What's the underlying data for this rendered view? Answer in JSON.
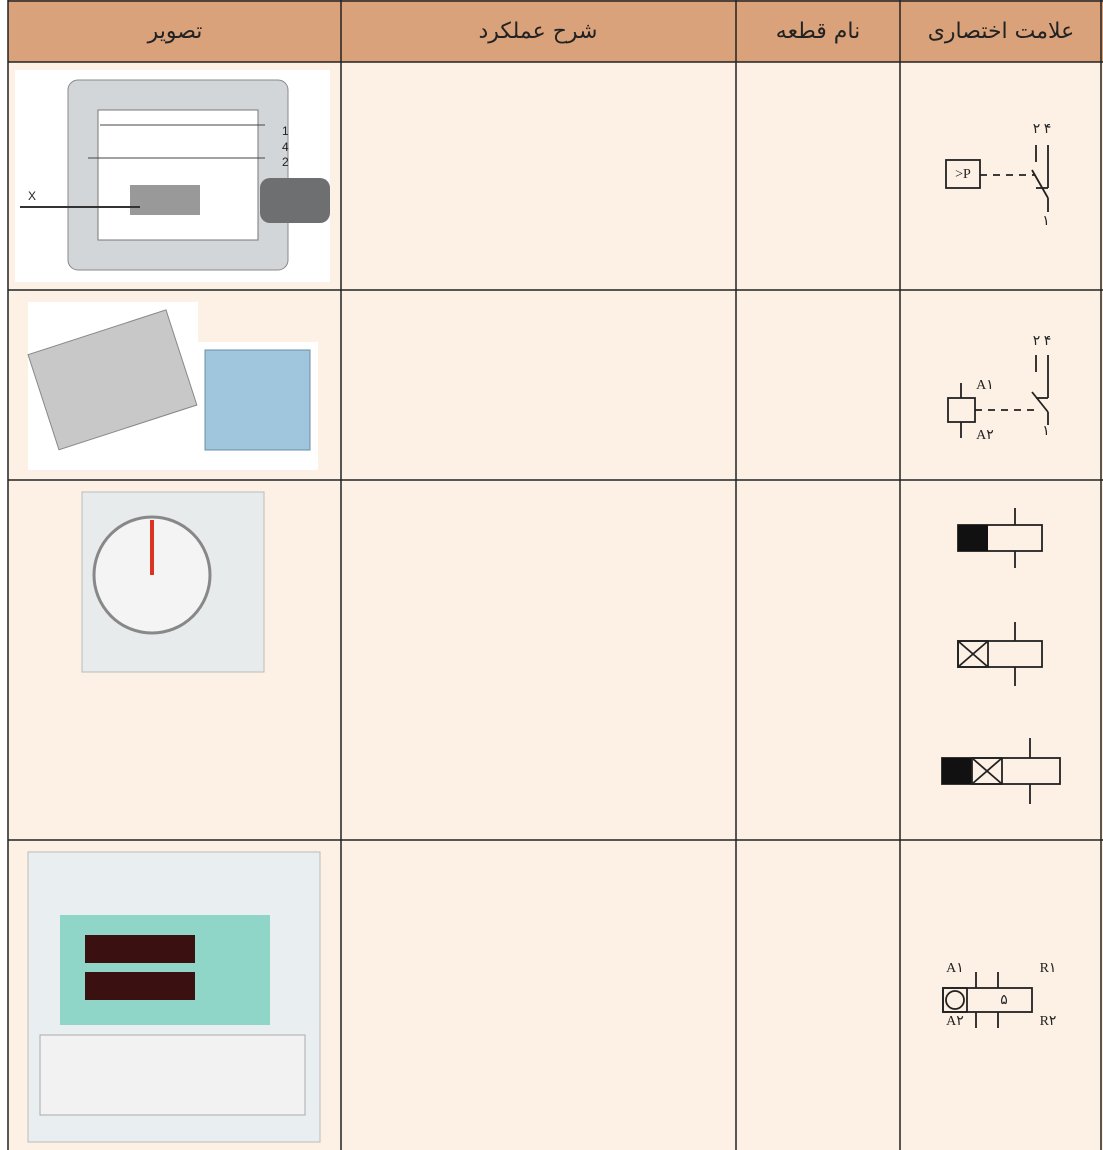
{
  "table": {
    "header": [
      "علامت اختصاری",
      "نام قطعه",
      "شرح عملکرد",
      "تصویر"
    ],
    "pressure_switch": {
      "box": ">P",
      "top": "۲ ۴",
      "bottom": "۱",
      "image_labels": [
        "1",
        "4",
        "2"
      ],
      "image_arrow": "X"
    },
    "relay": {
      "top": "۲ ۴",
      "bottom": "۱",
      "coil_top": "A۱",
      "coil_bottom": "A۲"
    },
    "counter": {
      "a_top": "A۱",
      "a_bottom": "A۲",
      "r_top": "R۱",
      "r_bottom": "R۲",
      "center": "۵"
    }
  }
}
